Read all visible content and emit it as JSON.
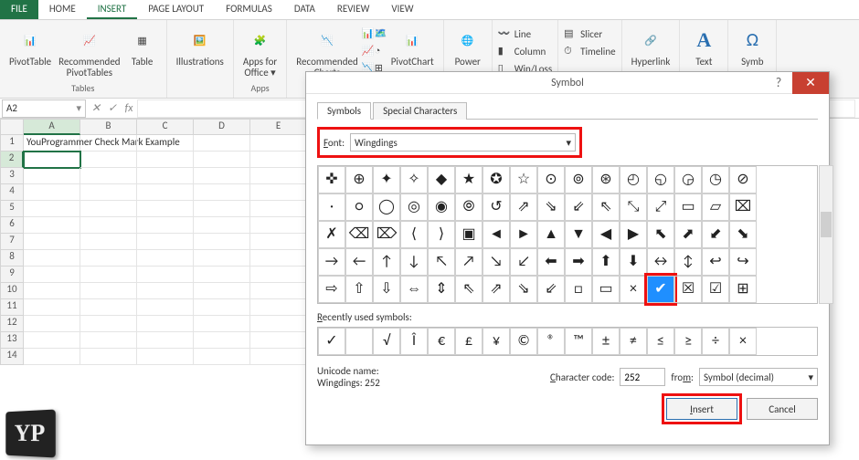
{
  "tabs": {
    "file": "FILE",
    "home": "HOME",
    "insert": "INSERT",
    "pageLayout": "PAGE LAYOUT",
    "formulas": "FORMULAS",
    "data": "DATA",
    "review": "REVIEW",
    "view": "VIEW",
    "active": "INSERT"
  },
  "ribbon": {
    "groups": {
      "tables": "Tables",
      "illustrations": "",
      "apps": "Apps",
      "charts": "",
      "power": "",
      "sparklines": "",
      "filters": "",
      "links": "",
      "text": "",
      "symbols": ""
    },
    "buttons": {
      "pivotTable": "PivotTable",
      "recPivot": "Recommended\nPivotTables",
      "table": "Table",
      "illus": "Illustrations",
      "apps": "Apps for\nOffice ▾",
      "recCharts": "Recommended\nCharts",
      "pivotChart": "PivotChart",
      "power": "Power",
      "line": "Line",
      "column": "Column",
      "winloss": "Win/Loss",
      "slicer": "Slicer",
      "timeline": "Timeline",
      "hyperlink": "Hyperlink",
      "text": "Text",
      "symbol": "Symb"
    }
  },
  "namebox": "A2",
  "colHeaders": [
    "A",
    "B",
    "C",
    "D",
    "E"
  ],
  "rowHeaders": [
    "1",
    "2",
    "3",
    "4",
    "5",
    "6",
    "7",
    "8",
    "9",
    "10",
    "11",
    "12",
    "13",
    "14"
  ],
  "cellA1": "YouProgrammer Check Mark Example",
  "dialog": {
    "title": "Symbol",
    "tabSymbols": "Symbols",
    "tabSpecial": "Special Characters",
    "fontLabel": "Font:",
    "fontValue": "Wingdings",
    "recentLabel": "Recently used symbols:",
    "unicodeLabel": "Unicode name:",
    "unicodeValue": "Wingdings: 252",
    "charCodeLabel": "Character code:",
    "charCodeValue": "252",
    "fromLabel": "from:",
    "fromValue": "Symbol (decimal)",
    "insert": "Insert",
    "cancel": "Cancel",
    "symbols": [
      "✜",
      "⊕",
      "✦",
      "✧",
      "◆",
      "★",
      "✪",
      "☆",
      "⊙",
      "⊚",
      "⊛",
      "◴",
      "◵",
      "◶",
      "◷",
      "⊘",
      "·",
      "○",
      "◯",
      "◎",
      "◉",
      "⦾",
      "↺",
      "⇗",
      "⇘",
      "⇙",
      "⇖",
      "⤡",
      "⤢",
      "▭",
      "▱",
      "⌧",
      "✗",
      "⌫",
      "⌦",
      "⟨",
      "⟩",
      "▣",
      "◄",
      "►",
      "▲",
      "▼",
      "◀",
      "▶",
      "⬉",
      "⬈",
      "⬋",
      "⬊",
      "→",
      "←",
      "↑",
      "↓",
      "↖",
      "↗",
      "↘",
      "↙",
      "⬅",
      "➡",
      "⬆",
      "⬇",
      "↔",
      "↕",
      "↩",
      "↪",
      "⇨",
      "⇧",
      "⇩",
      "⇔",
      "⇕",
      "⇖",
      "⇗",
      "⇘",
      "⇙",
      "□",
      "▭",
      "×",
      "✔",
      "☒",
      "☑",
      "⊞"
    ],
    "highlightIndex": 76,
    "recent": [
      "✓",
      "",
      "√",
      "Î",
      "€",
      "£",
      "¥",
      "©",
      "®",
      "™",
      "±",
      "≠",
      "≤",
      "≥",
      "÷",
      "×"
    ]
  },
  "yp": "YP"
}
